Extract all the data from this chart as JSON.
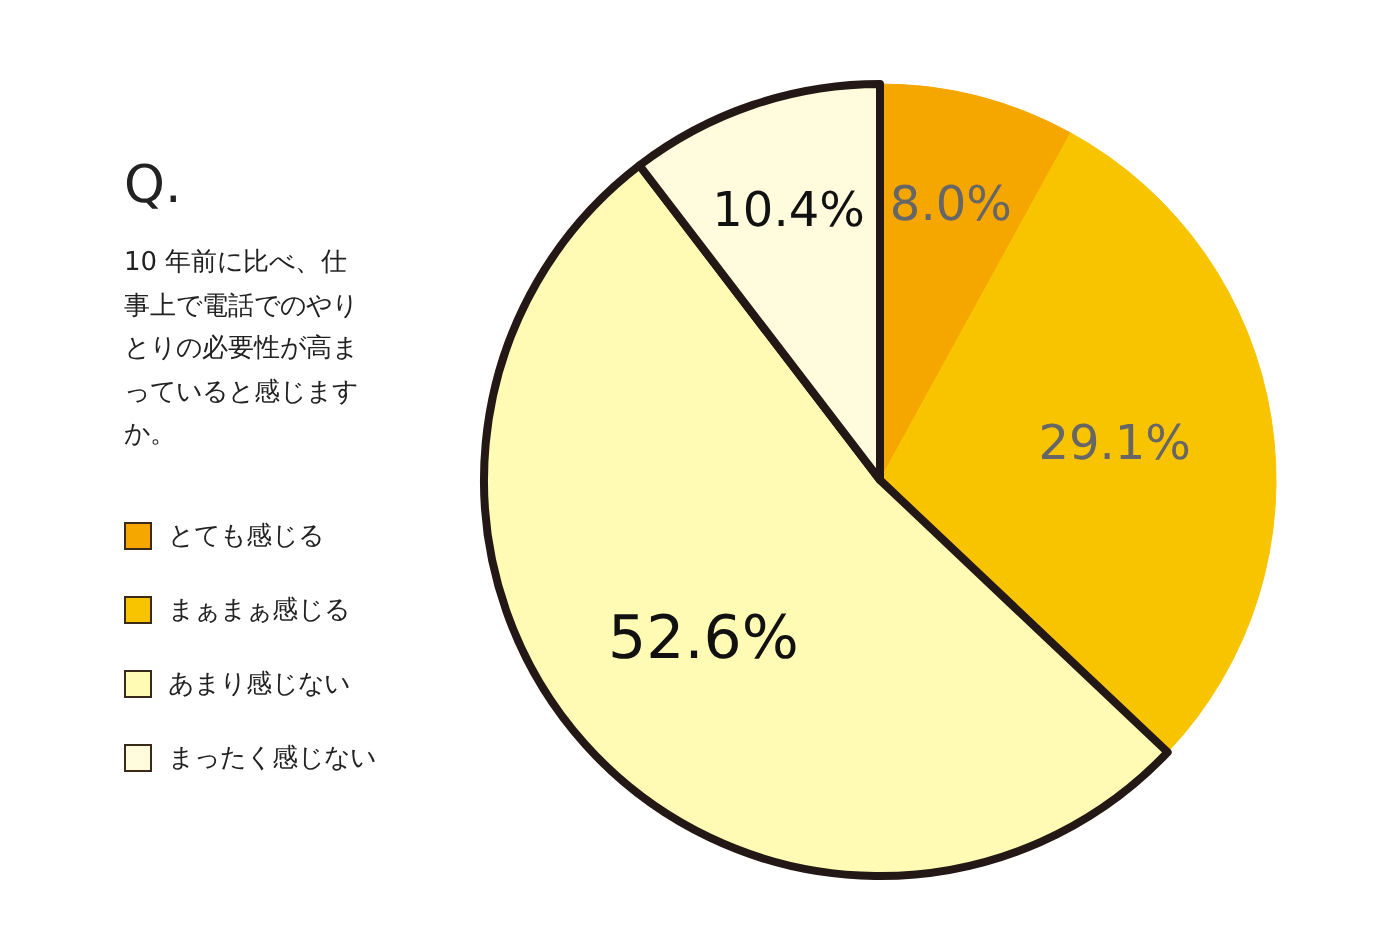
{
  "chart_data": {
    "type": "pie",
    "title": "Q.",
    "subtitle": "10 年前に比べ、仕事上で電話でのやりとりの必要性が高まっていると感じますか。",
    "categories": [
      "とても感じる",
      "まぁまぁ感じる",
      "あまり感じない",
      "まったく感じない"
    ],
    "values": [
      8.0,
      29.1,
      52.6,
      10.4
    ],
    "colors": [
      "#f5a700",
      "#f8c400",
      "#fffab4",
      "#fffbdc"
    ],
    "value_labels": [
      "8.0%",
      "29.1%",
      "52.6%",
      "10.4%"
    ],
    "legend": "left"
  }
}
